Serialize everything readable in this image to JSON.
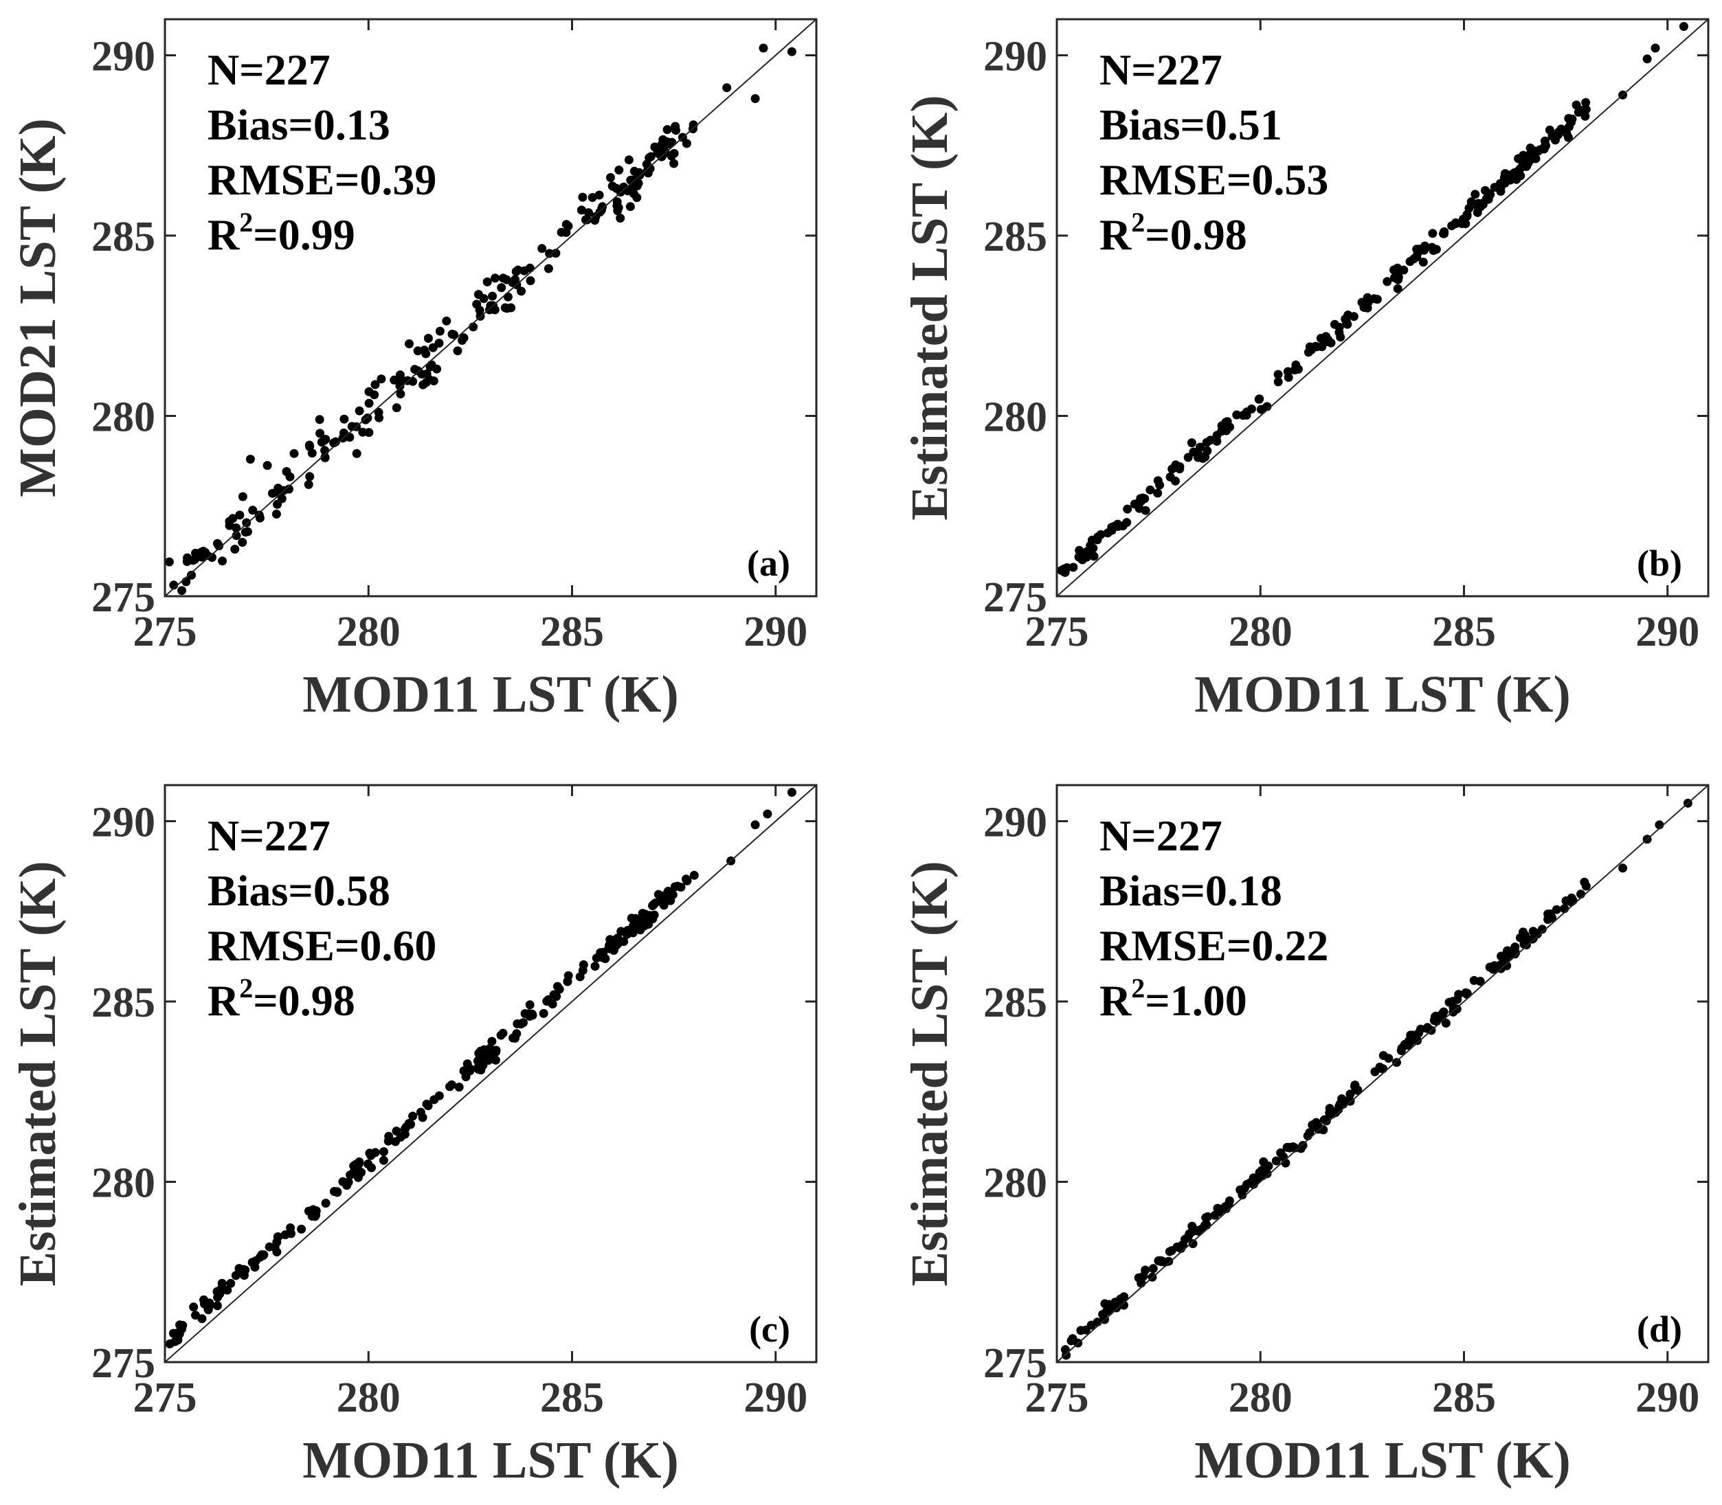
{
  "chart_data": [
    {
      "type": "scatter",
      "panel": "(a)",
      "xlabel": "MOD11 LST (K)",
      "ylabel": "MOD21 LST (K)",
      "xlim": [
        275,
        291
      ],
      "ylim": [
        275,
        291
      ],
      "xticks": [
        275,
        280,
        285,
        290
      ],
      "yticks": [
        275,
        280,
        285,
        290
      ],
      "reference_line": "1:1",
      "stats": {
        "n": "N=227",
        "bias": "Bias=0.13",
        "rmse": "RMSE=0.39",
        "r2_base": "R",
        "r2_exp": "2",
        "r2_val": "=0.99"
      },
      "points": {
        "count": 227,
        "bias": 0.13,
        "scatter": 0.36,
        "seed": 11,
        "outliers": [
          [
            277.1,
            278.8
          ],
          [
            278.8,
            279.9
          ],
          [
            281.0,
            282.0
          ],
          [
            283.5,
            283.0
          ],
          [
            286.4,
            287.1
          ],
          [
            287.5,
            287.0
          ],
          [
            289.5,
            288.8
          ],
          [
            289.7,
            290.2
          ],
          [
            290.4,
            290.1
          ],
          [
            288.8,
            289.1
          ]
        ]
      }
    },
    {
      "type": "scatter",
      "panel": "(b)",
      "xlabel": "MOD11 LST (K)",
      "ylabel": "Estimated LST (K)",
      "xlim": [
        275,
        291
      ],
      "ylim": [
        275,
        291
      ],
      "xticks": [
        275,
        280,
        285,
        290
      ],
      "yticks": [
        275,
        280,
        285,
        290
      ],
      "reference_line": "1:1",
      "stats": {
        "n": "N=227",
        "bias": "Bias=0.51",
        "rmse": "RMSE=0.53",
        "r2_base": "R",
        "r2_exp": "2",
        "r2_val": "=0.98"
      },
      "points": {
        "count": 227,
        "bias": 0.51,
        "scatter": 0.14,
        "seed": 23,
        "outliers": [
          [
            289.5,
            289.9
          ],
          [
            289.7,
            290.2
          ],
          [
            290.4,
            290.8
          ],
          [
            288.0,
            288.5
          ],
          [
            288.9,
            288.9
          ]
        ]
      }
    },
    {
      "type": "scatter",
      "panel": "(c)",
      "xlabel": "MOD11 LST (K)",
      "ylabel": "Estimated LST (K)",
      "xlim": [
        275,
        291
      ],
      "ylim": [
        275,
        291
      ],
      "xticks": [
        275,
        280,
        285,
        290
      ],
      "yticks": [
        275,
        280,
        285,
        290
      ],
      "reference_line": "1:1",
      "stats": {
        "n": "N=227",
        "bias": "Bias=0.58",
        "rmse": "RMSE=0.60",
        "r2_base": "R",
        "r2_exp": "2",
        "r2_val": "=0.98"
      },
      "points": {
        "count": 227,
        "bias": 0.58,
        "scatter": 0.15,
        "seed": 37,
        "outliers": [
          [
            289.5,
            289.9
          ],
          [
            289.8,
            290.2
          ],
          [
            290.4,
            290.8
          ],
          [
            288.0,
            288.5
          ],
          [
            288.9,
            288.9
          ]
        ]
      }
    },
    {
      "type": "scatter",
      "panel": "(d)",
      "xlabel": "MOD11 LST (K)",
      "ylabel": "Estimated LST (K)",
      "xlim": [
        275,
        291
      ],
      "ylim": [
        275,
        291
      ],
      "xticks": [
        275,
        280,
        285,
        290
      ],
      "yticks": [
        275,
        280,
        285,
        290
      ],
      "reference_line": "1:1",
      "stats": {
        "n": "N=227",
        "bias": "Bias=0.18",
        "rmse": "RMSE=0.22",
        "r2_base": "R",
        "r2_exp": "2",
        "r2_val": "=1.00"
      },
      "points": {
        "count": 227,
        "bias": 0.18,
        "scatter": 0.12,
        "seed": 53,
        "outliers": [
          [
            289.5,
            289.5
          ],
          [
            289.8,
            289.9
          ],
          [
            290.5,
            290.5
          ],
          [
            288.0,
            288.2
          ],
          [
            288.9,
            288.7
          ]
        ]
      }
    }
  ]
}
